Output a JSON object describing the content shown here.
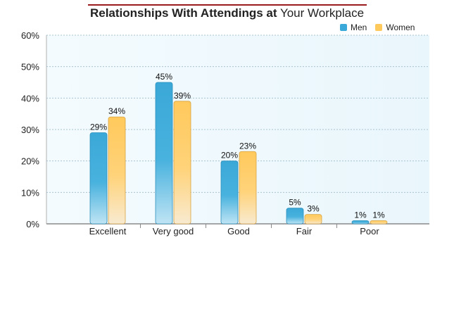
{
  "title": {
    "bold": "Relationships With Attendings at",
    "normal": "Your Workplace"
  },
  "legend": [
    {
      "label": "Men",
      "color": "#3aa8d8"
    },
    {
      "label": "Women",
      "color": "#ffc95c"
    }
  ],
  "chart_data": {
    "type": "bar",
    "title": "Relationships With Attendings at Your Workplace",
    "categories": [
      "Excellent",
      "Very good",
      "Good",
      "Fair",
      "Poor"
    ],
    "series": [
      {
        "name": "Men",
        "values": [
          29,
          45,
          20,
          5,
          1
        ],
        "labels": [
          "29%",
          "45%",
          "20%",
          "5%",
          "1%"
        ],
        "color": "#3aa8d8"
      },
      {
        "name": "Women",
        "values": [
          34,
          39,
          23,
          3,
          1
        ],
        "labels": [
          "34%",
          "39%",
          "23%",
          "3%",
          "1%"
        ],
        "color": "#ffc95c"
      }
    ],
    "ylim": [
      0,
      60
    ],
    "yticks": [
      "0%",
      "10%",
      "20%",
      "30%",
      "40%",
      "50%",
      "60%"
    ],
    "xlabel": "",
    "ylabel": "",
    "grid": true,
    "legend_position": "top-right"
  }
}
